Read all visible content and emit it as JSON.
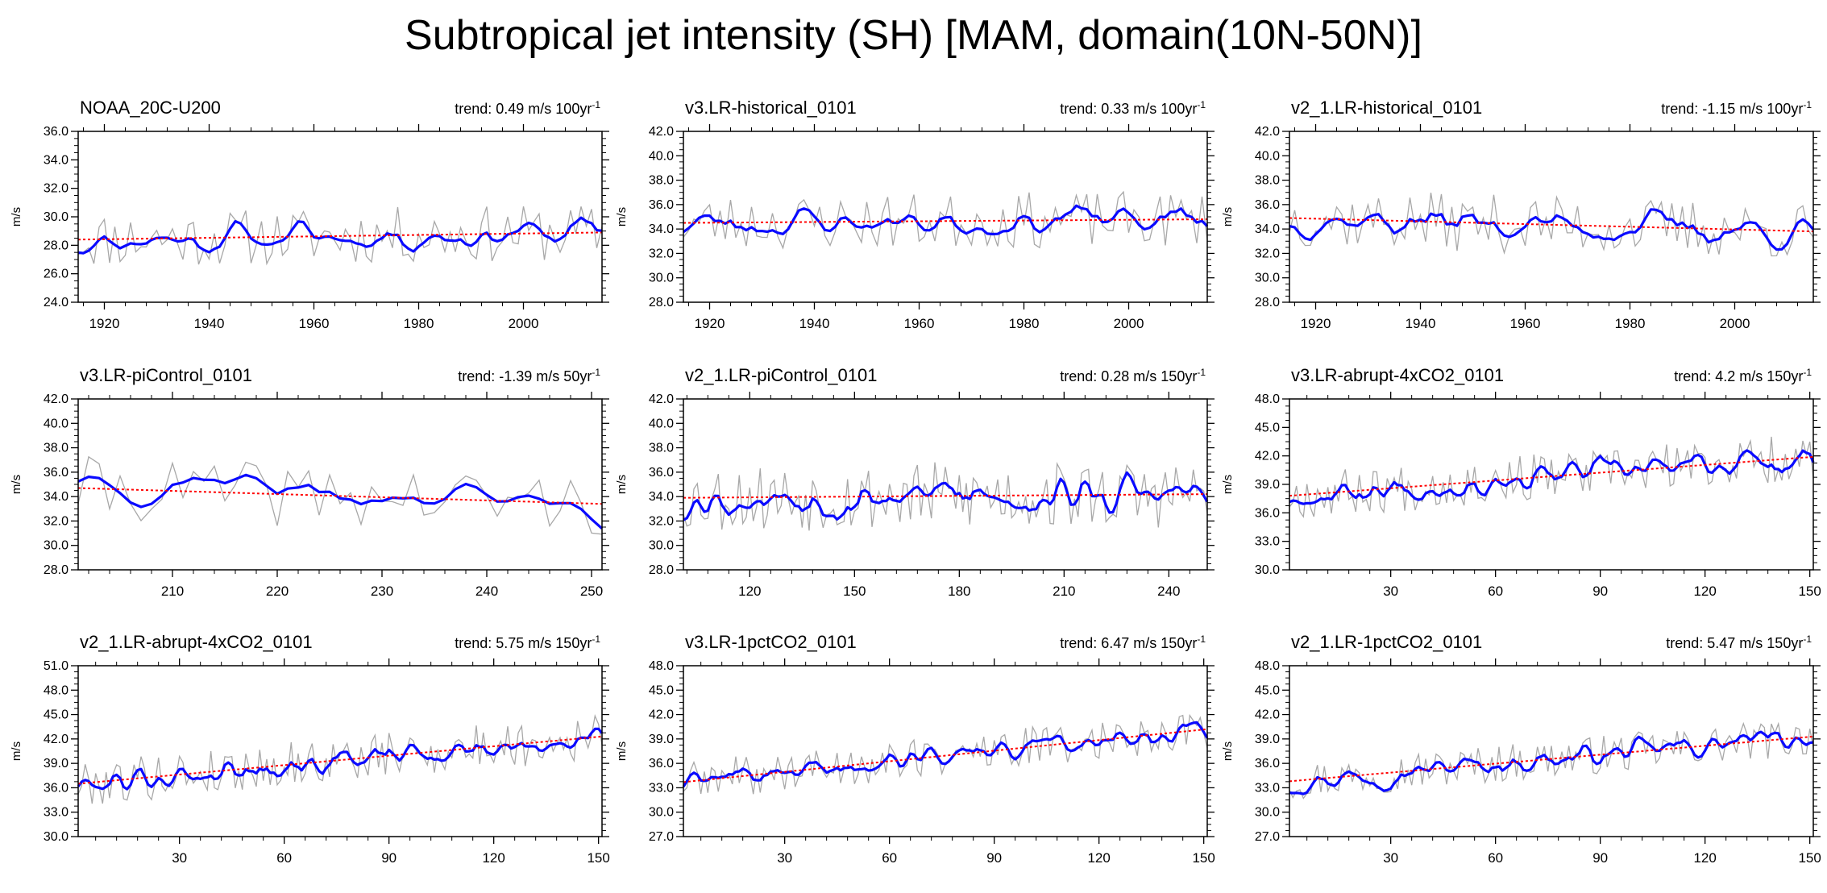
{
  "title": "Subtropical jet intensity (SH) [MAM, domain(10N-50N)]",
  "colors": {
    "raw": "#a8a8a8",
    "smooth": "#0a0aff",
    "trend": "#ff0000",
    "axis": "#000000"
  },
  "chart_data": [
    {
      "type": "line",
      "title": "NOAA_20C-U200",
      "trend_label": "trend: 0.49 m/s 100yr",
      "trend_sup": "-1",
      "ylabel": "m/s",
      "xlim": [
        1915,
        2015
      ],
      "ylim": [
        24,
        36
      ],
      "yticks": [
        "24.0",
        "26.0",
        "28.0",
        "30.0",
        "32.0",
        "34.0",
        "36.0"
      ],
      "xticks": [
        "1920",
        "1940",
        "1960",
        "1980",
        "2000"
      ],
      "trend_line": [
        28.4,
        28.9
      ],
      "mean": 28.6,
      "amp_raw": 2.0,
      "amp_smooth": 1.0,
      "seed": 11
    },
    {
      "type": "line",
      "title": "v3.LR-historical_0101",
      "trend_label": "trend: 0.33 m/s 100yr",
      "trend_sup": "-1",
      "ylabel": "m/s",
      "xlim": [
        1915,
        2015
      ],
      "ylim": [
        28,
        42
      ],
      "yticks": [
        "28.0",
        "30.0",
        "32.0",
        "34.0",
        "36.0",
        "38.0",
        "40.0",
        "42.0"
      ],
      "xticks": [
        "1920",
        "1940",
        "1960",
        "1980",
        "2000"
      ],
      "trend_line": [
        34.5,
        34.8
      ],
      "mean": 34.6,
      "amp_raw": 2.3,
      "amp_smooth": 1.2,
      "seed": 23
    },
    {
      "type": "line",
      "title": "v2_1.LR-historical_0101",
      "trend_label": "trend: -1.15 m/s 100yr",
      "trend_sup": "-1",
      "ylabel": "m/s",
      "xlim": [
        1915,
        2015
      ],
      "ylim": [
        28,
        42
      ],
      "yticks": [
        "28.0",
        "30.0",
        "32.0",
        "34.0",
        "36.0",
        "38.0",
        "40.0",
        "42.0"
      ],
      "xticks": [
        "1920",
        "1940",
        "1960",
        "1980",
        "2000"
      ],
      "trend_line": [
        34.9,
        33.8
      ],
      "mean": 34.4,
      "amp_raw": 2.4,
      "amp_smooth": 1.2,
      "seed": 37
    },
    {
      "type": "line",
      "title": "v3.LR-piControl_0101",
      "trend_label": "trend: -1.39 m/s 50yr",
      "trend_sup": "-1",
      "ylabel": "m/s",
      "xlim": [
        201,
        251
      ],
      "ylim": [
        28,
        42
      ],
      "yticks": [
        "28.0",
        "30.0",
        "32.0",
        "34.0",
        "36.0",
        "38.0",
        "40.0",
        "42.0"
      ],
      "xticks": [
        "210",
        "220",
        "230",
        "240",
        "250"
      ],
      "trend_line": [
        34.7,
        33.4
      ],
      "mean": 34.0,
      "amp_raw": 2.6,
      "amp_smooth": 1.5,
      "seed": 41
    },
    {
      "type": "line",
      "title": "v2_1.LR-piControl_0101",
      "trend_label": "trend: 0.28 m/s 150yr",
      "trend_sup": "-1",
      "ylabel": "m/s",
      "xlim": [
        101,
        251
      ],
      "ylim": [
        28,
        42
      ],
      "yticks": [
        "28.0",
        "30.0",
        "32.0",
        "34.0",
        "36.0",
        "38.0",
        "40.0",
        "42.0"
      ],
      "xticks": [
        "120",
        "150",
        "180",
        "210",
        "240"
      ],
      "trend_line": [
        33.9,
        34.2
      ],
      "mean": 34.0,
      "amp_raw": 2.8,
      "amp_smooth": 1.2,
      "seed": 53
    },
    {
      "type": "line",
      "title": "v3.LR-abrupt-4xCO2_0101",
      "trend_label": "trend: 4.2 m/s 150yr",
      "trend_sup": "-1",
      "ylabel": "m/s",
      "xlim": [
        1,
        151
      ],
      "ylim": [
        30,
        48
      ],
      "yticks": [
        "30.0",
        "33.0",
        "36.0",
        "39.0",
        "42.0",
        "45.0",
        "48.0"
      ],
      "xticks": [
        "30",
        "60",
        "90",
        "120",
        "150"
      ],
      "trend_line": [
        37.8,
        41.9
      ],
      "mean": 39.8,
      "amp_raw": 2.5,
      "amp_smooth": 1.3,
      "seed": 67
    },
    {
      "type": "line",
      "title": "v2_1.LR-abrupt-4xCO2_0101",
      "trend_label": "trend: 5.75 m/s 150yr",
      "trend_sup": "-1",
      "ylabel": "m/s",
      "xlim": [
        1,
        151
      ],
      "ylim": [
        30,
        51
      ],
      "yticks": [
        "30.0",
        "33.0",
        "36.0",
        "39.0",
        "42.0",
        "45.0",
        "48.0",
        "51.0"
      ],
      "xticks": [
        "30",
        "60",
        "90",
        "120",
        "150"
      ],
      "trend_line": [
        36.5,
        42.3
      ],
      "mean": 39.4,
      "amp_raw": 2.8,
      "amp_smooth": 1.4,
      "seed": 79
    },
    {
      "type": "line",
      "title": "v3.LR-1pctCO2_0101",
      "trend_label": "trend: 6.47 m/s 150yr",
      "trend_sup": "-1",
      "ylabel": "m/s",
      "xlim": [
        1,
        151
      ],
      "ylim": [
        27,
        48
      ],
      "yticks": [
        "27.0",
        "30.0",
        "33.0",
        "36.0",
        "39.0",
        "42.0",
        "45.0",
        "48.0"
      ],
      "xticks": [
        "30",
        "60",
        "90",
        "120",
        "150"
      ],
      "trend_line": [
        33.7,
        40.2
      ],
      "mean": 37.0,
      "amp_raw": 2.5,
      "amp_smooth": 1.2,
      "seed": 89
    },
    {
      "type": "line",
      "title": "v2_1.LR-1pctCO2_0101",
      "trend_label": "trend: 5.47 m/s 150yr",
      "trend_sup": "-1",
      "ylabel": "m/s",
      "xlim": [
        1,
        151
      ],
      "ylim": [
        27,
        48
      ],
      "yticks": [
        "27.0",
        "30.0",
        "33.0",
        "36.0",
        "39.0",
        "42.0",
        "45.0",
        "48.0"
      ],
      "xticks": [
        "30",
        "60",
        "90",
        "120",
        "150"
      ],
      "trend_line": [
        33.8,
        39.3
      ],
      "mean": 36.6,
      "amp_raw": 2.4,
      "amp_smooth": 1.2,
      "seed": 97
    }
  ]
}
